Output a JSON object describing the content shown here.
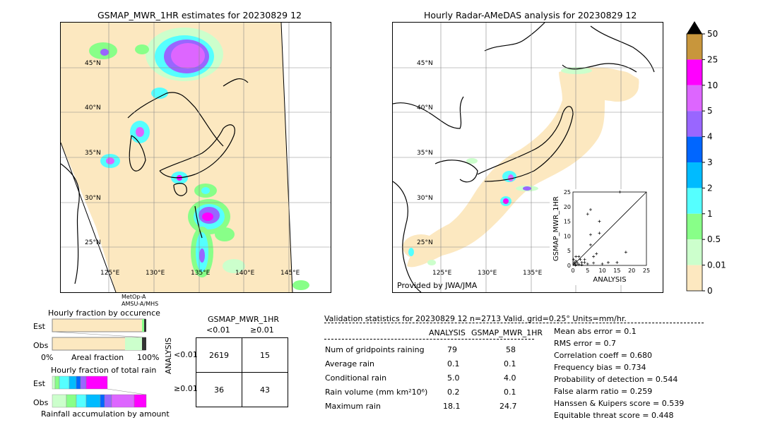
{
  "left_map": {
    "title": "GSMAP_MWR_1HR estimates for 20230829 12",
    "lat_labels": [
      "45°N",
      "40°N",
      "35°N",
      "30°N",
      "25°N"
    ],
    "lon_labels": [
      "125°E",
      "130°E",
      "135°E",
      "140°E",
      "145°E"
    ],
    "satellite_note_1": "MetOp-A",
    "satellite_note_2": "AMSU-A/MHS"
  },
  "right_map": {
    "title": "Hourly Radar-AMeDAS analysis for 20230829 12",
    "lat_labels": [
      "45°N",
      "40°N",
      "35°N",
      "30°N",
      "25°N"
    ],
    "lon_labels": [
      "125°E",
      "130°E",
      "135°E"
    ],
    "credit": "Provided by JWA/JMA"
  },
  "colorbar": {
    "ticks": [
      "50",
      "25",
      "10",
      "5",
      "4",
      "3",
      "2",
      "1",
      "0.5",
      "0.01",
      "0"
    ],
    "colors": [
      "#c8963c",
      "#ff00ff",
      "#dd66ff",
      "#9966ff",
      "#0066ff",
      "#00bbff",
      "#55ffff",
      "#88ff88",
      "#ccffcc",
      "#fde8c0"
    ],
    "extend_color": "#000000"
  },
  "scatter": {
    "ylabel": "GSMAP_MWR_1HR",
    "xlabel": "ANALYSIS",
    "ticks": [
      "0",
      "5",
      "10",
      "15",
      "20",
      "25"
    ],
    "points": [
      [
        0.3,
        0.5
      ],
      [
        0.5,
        1
      ],
      [
        1,
        0.2
      ],
      [
        1,
        1.5
      ],
      [
        1.5,
        0.8
      ],
      [
        2,
        0.3
      ],
      [
        0.2,
        2
      ],
      [
        3,
        1
      ],
      [
        4,
        2
      ],
      [
        5,
        17.5
      ],
      [
        6,
        19
      ],
      [
        6,
        10.5
      ],
      [
        6,
        7
      ],
      [
        7,
        3
      ],
      [
        8,
        4
      ],
      [
        9,
        15
      ],
      [
        9,
        11
      ],
      [
        10,
        0.5
      ],
      [
        12,
        1
      ],
      [
        15,
        1
      ],
      [
        16,
        25
      ],
      [
        18,
        4.5
      ],
      [
        2,
        3
      ],
      [
        1,
        3
      ],
      [
        4,
        1
      ],
      [
        5,
        0.5
      ],
      [
        3,
        0.2
      ],
      [
        0.8,
        0.1
      ],
      [
        2.5,
        2
      ],
      [
        7,
        0.8
      ]
    ]
  },
  "fraction_occurrence": {
    "title": "Hourly fraction by occurence",
    "rows": [
      "Est",
      "Obs"
    ],
    "axis_left": "0%",
    "axis_mid": "Areal fraction",
    "axis_right": "100%"
  },
  "fraction_total": {
    "title": "Hourly fraction of total rain",
    "rows": [
      "Est",
      "Obs"
    ],
    "footer": "Rainfall accumulation by amount"
  },
  "contingency": {
    "title": "GSMAP_MWR_1HR",
    "col_lt": "<0.01",
    "col_ge": "≥0.01",
    "row_axis": "ANALYSIS",
    "row_lt": "<0.01",
    "row_ge": "≥0.01",
    "cells": [
      "2619",
      "15",
      "36",
      "43"
    ]
  },
  "stats": {
    "header": "Validation statistics for 20230829 12  n=2713 Valid. grid=0.25° Units=mm/hr.",
    "col_analysis": "ANALYSIS",
    "col_gsmap": "GSMAP_MWR_1HR",
    "rows": [
      {
        "label": "Num of gridpoints raining",
        "a": "79",
        "g": "58"
      },
      {
        "label": "Average rain",
        "a": "0.1",
        "g": "0.1"
      },
      {
        "label": "Conditional rain",
        "a": "5.0",
        "g": "4.0"
      },
      {
        "label": "Rain volume (mm km²10⁶)",
        "a": "0.2",
        "g": "0.1"
      },
      {
        "label": "Maximum rain",
        "a": "18.1",
        "g": "24.7"
      }
    ],
    "scores": [
      "Mean abs error =    0.1",
      "RMS error =    0.7",
      "Correlation coeff =  0.680",
      "Frequency bias =  0.734",
      "Probability of detection =  0.544",
      "False alarm ratio =  0.259",
      "Hanssen & Kuipers score =  0.539",
      "Equitable threat score =  0.448"
    ]
  }
}
